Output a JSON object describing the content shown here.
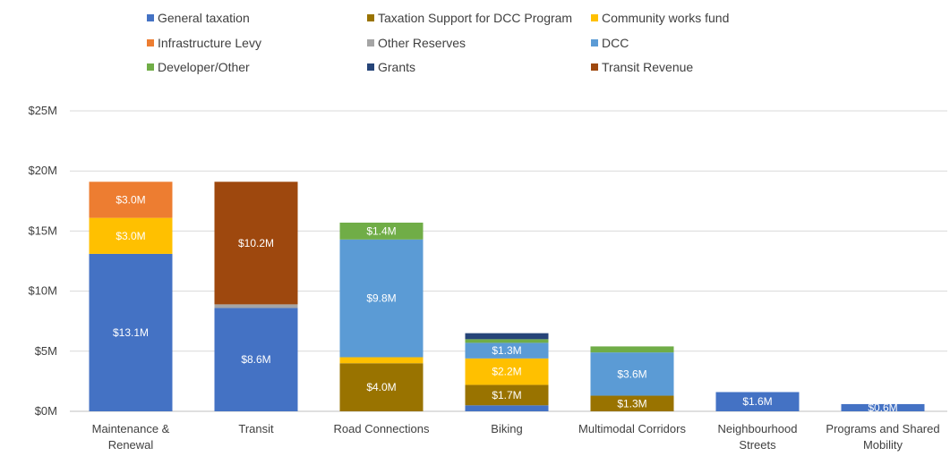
{
  "chart_data": {
    "type": "bar",
    "stacked": true,
    "categories": [
      [
        "Maintenance &",
        "Renewal"
      ],
      [
        "Transit"
      ],
      [
        "Road Connections"
      ],
      [
        "Biking"
      ],
      [
        "Multimodal Corridors"
      ],
      [
        "Neighbourhood",
        "Streets"
      ],
      [
        "Programs and Shared",
        "Mobility"
      ]
    ],
    "ylim": [
      0,
      25
    ],
    "yticks": [
      0,
      5,
      10,
      15,
      20,
      25
    ],
    "ytick_labels": [
      "$0M",
      "$5M",
      "$10M",
      "$15M",
      "$20M",
      "$25M"
    ],
    "grid": true,
    "legend": "top",
    "series": [
      {
        "name": "General taxation",
        "color": "#4472C4",
        "values": [
          13.1,
          8.6,
          0,
          0.5,
          0,
          1.6,
          0.6
        ],
        "labels": [
          "$13.1M",
          "$8.6M",
          "",
          "",
          "",
          "$1.6M",
          "$0.6M"
        ]
      },
      {
        "name": "Taxation Support for DCC Program",
        "color": "#997300",
        "values": [
          0,
          0,
          4.0,
          1.7,
          1.3,
          0,
          0
        ],
        "labels": [
          "",
          "",
          "$4.0M",
          "$1.7M",
          "$1.3M",
          "",
          ""
        ]
      },
      {
        "name": "Community works fund",
        "color": "#FFC000",
        "values": [
          3.0,
          0,
          0.5,
          2.2,
          0,
          0,
          0
        ],
        "labels": [
          "$3.0M",
          "",
          "",
          "$2.2M",
          "",
          "",
          ""
        ]
      },
      {
        "name": "Infrastructure Levy",
        "color": "#ED7D31",
        "values": [
          3.0,
          0,
          0,
          0,
          0,
          0,
          0
        ],
        "labels": [
          "$3.0M",
          "",
          "",
          "",
          "",
          "",
          ""
        ]
      },
      {
        "name": "Other Reserves",
        "color": "#A5A5A5",
        "values": [
          0,
          0.3,
          0,
          0,
          0,
          0,
          0
        ],
        "labels": [
          "",
          "",
          "",
          "",
          "",
          "",
          ""
        ]
      },
      {
        "name": "DCC",
        "color": "#5B9BD5",
        "values": [
          0,
          0,
          9.8,
          1.3,
          3.6,
          0,
          0
        ],
        "labels": [
          "",
          "",
          "$9.8M",
          "$1.3M",
          "$3.6M",
          "",
          ""
        ]
      },
      {
        "name": "Developer/Other",
        "color": "#70AD47",
        "values": [
          0,
          0,
          1.4,
          0.3,
          0.5,
          0,
          0
        ],
        "labels": [
          "",
          "",
          "$1.4M",
          "",
          "",
          "",
          ""
        ]
      },
      {
        "name": "Grants",
        "color": "#264478",
        "values": [
          0,
          0,
          0,
          0.5,
          0,
          0,
          0
        ],
        "labels": [
          "",
          "",
          "",
          "",
          "",
          "",
          ""
        ]
      },
      {
        "name": "Transit Revenue",
        "color": "#9E480E",
        "values": [
          0,
          10.2,
          0,
          0,
          0,
          0,
          0
        ],
        "labels": [
          "",
          "$10.2M",
          "",
          "",
          "",
          "",
          ""
        ]
      }
    ]
  }
}
